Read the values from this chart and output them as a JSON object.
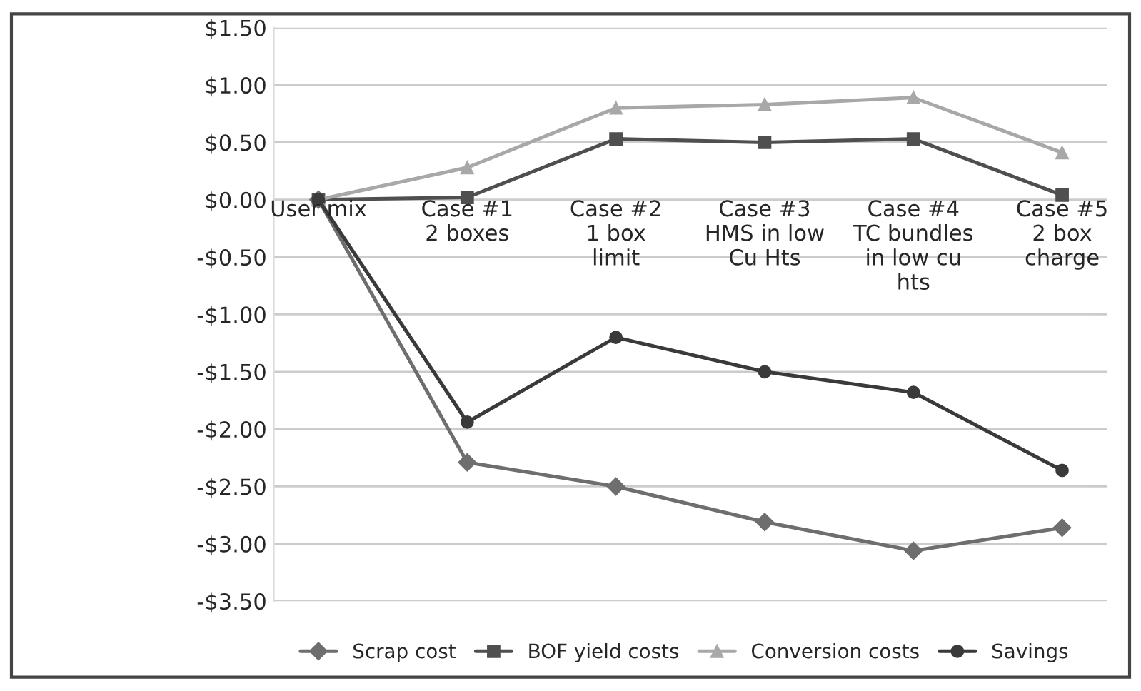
{
  "chart_data": {
    "type": "line",
    "categories": [
      "User mix",
      "Case #1\n2 boxes",
      "Case #2\n1 box\nlimit",
      "Case #3\nHMS in low\nCu Hts",
      "Case #4\nTC bundles\nin low cu\nhts",
      "Case #5\n2 box\ncharge"
    ],
    "series": [
      {
        "name": "Scrap cost",
        "color": "#6e6e6e",
        "marker": "diamond",
        "values": [
          0,
          -2.29,
          -2.5,
          -2.81,
          -3.06,
          -2.86
        ]
      },
      {
        "name": "BOF yield costs",
        "color": "#4f4f4f",
        "marker": "square",
        "values": [
          0,
          0.02,
          0.53,
          0.5,
          0.53,
          0.04
        ]
      },
      {
        "name": "Conversion costs",
        "color": "#a8a8a8",
        "marker": "triangle",
        "values": [
          0,
          0.28,
          0.8,
          0.83,
          0.89,
          0.41
        ]
      },
      {
        "name": "Savings",
        "color": "#3a3a3a",
        "marker": "circle",
        "values": [
          0,
          -1.94,
          -1.2,
          -1.5,
          -1.68,
          -2.36
        ]
      }
    ],
    "ylim": [
      -3.5,
      1.5
    ],
    "yticks": [
      {
        "value": -3.5,
        "label": "-$3.50"
      },
      {
        "value": -3.0,
        "label": "-$3.00"
      },
      {
        "value": -2.5,
        "label": "-$2.50"
      },
      {
        "value": -2.0,
        "label": "-$2.00"
      },
      {
        "value": -1.5,
        "label": "-$1.50"
      },
      {
        "value": -1.0,
        "label": "-$1.00"
      },
      {
        "value": -0.5,
        "label": "-$0.50"
      },
      {
        "value": 0,
        "label": "$0.00"
      },
      {
        "value": 0.5,
        "label": "$0.50"
      },
      {
        "value": 1.0,
        "label": "$1.00"
      },
      {
        "value": 1.5,
        "label": "$1.50"
      }
    ],
    "grid": "y",
    "legend": "bottom",
    "line_style": "solid"
  }
}
